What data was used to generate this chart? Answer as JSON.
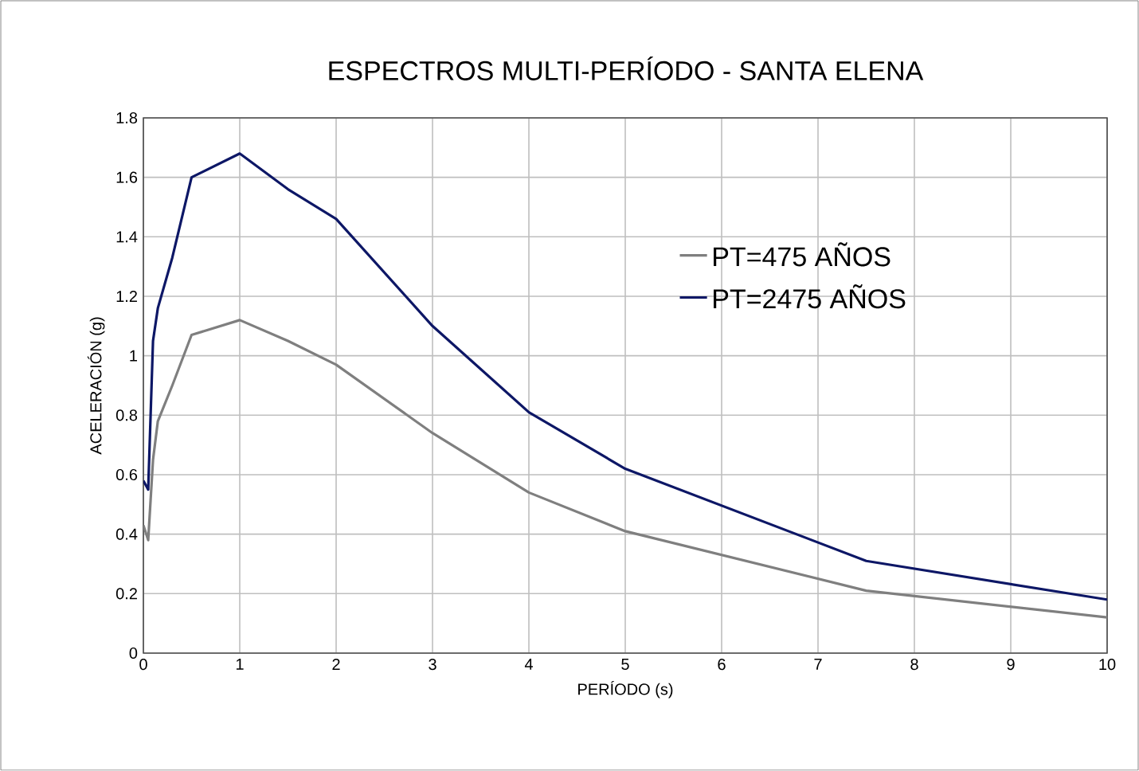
{
  "chart_data": {
    "type": "line",
    "title": "ESPECTROS MULTI-PERÍODO - SANTA ELENA",
    "xlabel": "PERÍODO (s)",
    "ylabel": "ACELERACIÓN (g)",
    "xlim": [
      0,
      10
    ],
    "xticks": [
      0,
      1,
      2,
      3,
      4,
      5,
      6,
      7,
      8,
      9,
      10
    ],
    "ylim": [
      0,
      1.8
    ],
    "yticks": [
      0,
      0.2,
      0.4,
      0.6,
      0.8,
      1,
      1.2,
      1.4,
      1.6,
      1.8
    ],
    "grid": true,
    "legend": "right",
    "marker": "none",
    "line_style": "solid",
    "series": [
      {
        "name": "PT=475 AÑOS",
        "color": "#7f7f7f",
        "x": [
          0,
          0.05,
          0.1,
          0.15,
          0.3,
          0.5,
          1,
          1.5,
          2,
          3,
          4,
          5,
          7.5,
          10
        ],
        "values": [
          0.43,
          0.38,
          0.65,
          0.78,
          0.9,
          1.07,
          1.12,
          1.05,
          0.97,
          0.74,
          0.54,
          0.41,
          0.21,
          0.12
        ]
      },
      {
        "name": "PT=2475 AÑOS",
        "color": "#0d1766",
        "x": [
          0,
          0.05,
          0.1,
          0.15,
          0.3,
          0.5,
          1,
          1.5,
          2,
          3,
          4,
          5,
          7.5,
          10
        ],
        "values": [
          0.58,
          0.55,
          1.05,
          1.16,
          1.33,
          1.6,
          1.68,
          1.56,
          1.46,
          1.1,
          0.81,
          0.62,
          0.31,
          0.18
        ]
      }
    ]
  }
}
